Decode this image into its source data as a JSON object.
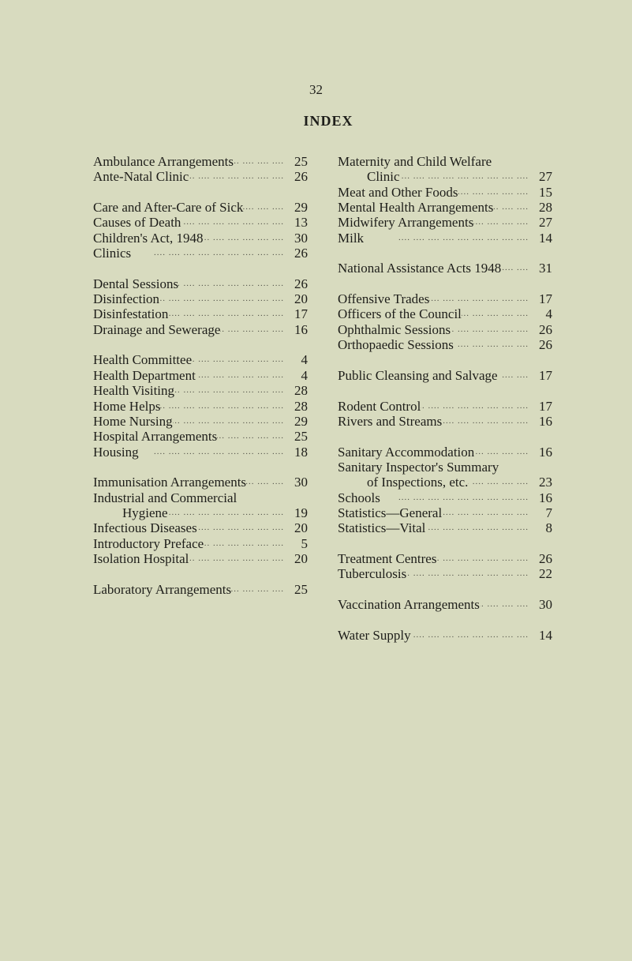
{
  "page_number": "32",
  "title": "INDEX",
  "left_column": [
    [
      {
        "name": "Ambulance Arrangements",
        "page": "25"
      },
      {
        "name": "Ante-Natal Clinic",
        "page": "26"
      }
    ],
    [
      {
        "name": "Care and After-Care of Sick",
        "page": "29"
      },
      {
        "name": "Causes of Death",
        "page": "13"
      },
      {
        "name": "Children's Act, 1948",
        "page": "30"
      },
      {
        "name": "Clinics",
        "page": "26"
      }
    ],
    [
      {
        "name": "Dental Sessions",
        "page": "26"
      },
      {
        "name": "Disinfection",
        "page": "20"
      },
      {
        "name": "Disinfestation",
        "page": "17"
      },
      {
        "name": "Drainage and Sewerage",
        "page": "16"
      }
    ],
    [
      {
        "name": "Health Committee",
        "page": "4"
      },
      {
        "name": "Health Department",
        "page": "4"
      },
      {
        "name": "Health Visiting",
        "page": "28"
      },
      {
        "name": "Home Helps",
        "page": "28"
      },
      {
        "name": "Home Nursing",
        "page": "29"
      },
      {
        "name": "Hospital Arrangements",
        "page": "25"
      },
      {
        "name": "Housing",
        "page": "18"
      }
    ],
    [
      {
        "name": "Immunisation Arrangements",
        "page": "30"
      },
      {
        "name": "Industrial and Commercial",
        "page": ""
      },
      {
        "name": "Hygiene",
        "page": "19",
        "indent": true
      },
      {
        "name": "Infectious Diseases",
        "page": "20"
      },
      {
        "name": "Introductory Preface",
        "page": "5"
      },
      {
        "name": "Isolation Hospital",
        "page": "20"
      }
    ],
    [
      {
        "name": "Laboratory Arrangements",
        "page": "25"
      }
    ]
  ],
  "right_column": [
    [
      {
        "name": "Maternity and Child Welfare",
        "page": ""
      },
      {
        "name": "Clinic",
        "page": "27",
        "indent": true
      },
      {
        "name": "Meat and Other Foods",
        "page": "15"
      },
      {
        "name": "Mental Health Arrangements",
        "page": "28"
      },
      {
        "name": "Midwifery Arrangements",
        "page": "27"
      },
      {
        "name": "Milk",
        "page": "14"
      }
    ],
    [
      {
        "name": "National Assistance Acts 1948",
        "page": "31"
      }
    ],
    [
      {
        "name": "Offensive Trades",
        "page": "17"
      },
      {
        "name": "Officers of the Council",
        "page": "4"
      },
      {
        "name": "Ophthalmic Sessions",
        "page": "26"
      },
      {
        "name": "Orthopaedic Sessions",
        "page": "26"
      }
    ],
    [
      {
        "name": "Public Cleansing and Salvage",
        "page": "17"
      }
    ],
    [
      {
        "name": "Rodent Control",
        "page": "17"
      },
      {
        "name": "Rivers and Streams",
        "page": "16"
      }
    ],
    [
      {
        "name": "Sanitary Accommodation",
        "page": "16"
      },
      {
        "name": "Sanitary Inspector's Summary",
        "page": ""
      },
      {
        "name": "of Inspections, etc.",
        "page": "23",
        "indent": true
      },
      {
        "name": "Schools",
        "page": "16"
      },
      {
        "name": "Statistics—General",
        "page": "7"
      },
      {
        "name": "Statistics—Vital",
        "page": "8"
      }
    ],
    [
      {
        "name": "Treatment Centres",
        "page": "26"
      },
      {
        "name": "Tuberculosis",
        "page": "22"
      }
    ],
    [
      {
        "name": "Vaccination Arrangements",
        "page": "30"
      }
    ],
    [
      {
        "name": "Water Supply",
        "page": "14"
      }
    ]
  ]
}
